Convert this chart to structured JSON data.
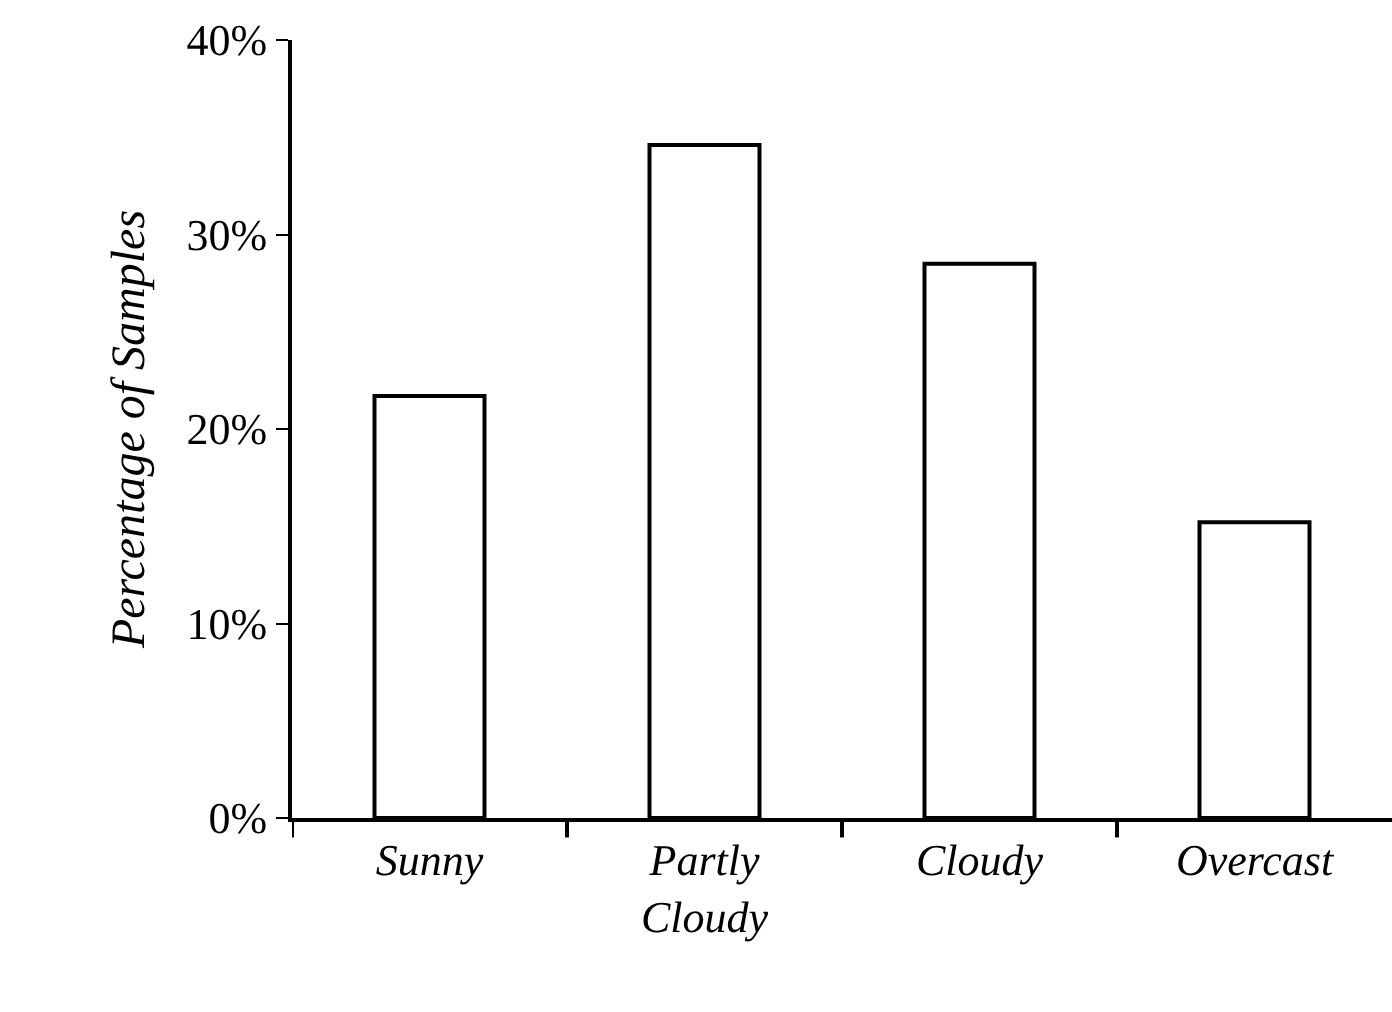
{
  "chart_data": {
    "type": "bar",
    "ylabel": "Percentage of Samples",
    "categories": [
      "Sunny",
      "Partly Cloudy",
      "Cloudy",
      "Overcast"
    ],
    "values": [
      21.7,
      34.6,
      28.5,
      15.2
    ],
    "color": "#ffffff",
    "ylim": [
      0,
      40
    ],
    "yticks": [
      {
        "value": 0,
        "label": "0%"
      },
      {
        "value": 10,
        "label": "10%"
      },
      {
        "value": 20,
        "label": "20%"
      },
      {
        "value": 30,
        "label": "30%"
      },
      {
        "value": 40,
        "label": "40%"
      }
    ],
    "tick_labels": "xy"
  }
}
